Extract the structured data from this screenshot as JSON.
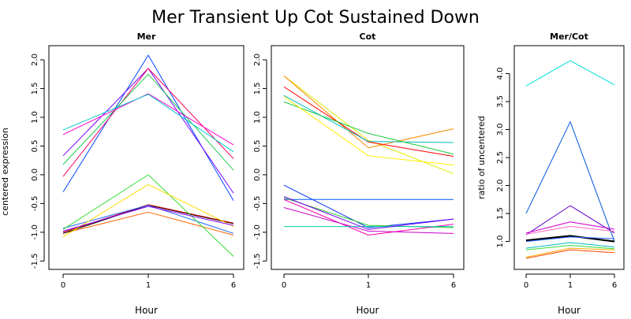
{
  "figure": {
    "title": "Mer Transient Up Cot Sustained Down",
    "y_axis_label": "centered expression"
  },
  "chart_data": [
    {
      "type": "line",
      "title": "Mer",
      "xlabel": "Hour",
      "ylabel": "",
      "categories": [
        "0",
        "1",
        "6"
      ],
      "ylim": [
        -1.55,
        2.15
      ],
      "yticks": [
        -1.5,
        -1.0,
        -0.5,
        0.0,
        0.5,
        1.0,
        1.5,
        2.0
      ],
      "ytick_labels": [
        "-1.5",
        "-1.0",
        "-0.5",
        "0.0",
        "0.5",
        "1.0",
        "1.5",
        "2.0"
      ],
      "grid": false,
      "series": [
        {
          "color": "#0044ff",
          "values": [
            -0.3,
            2.08,
            -0.45
          ]
        },
        {
          "color": "#7a00ff",
          "values": [
            0.33,
            1.85,
            -0.32
          ]
        },
        {
          "color": "#ff0066",
          "values": [
            -0.03,
            1.85,
            0.28
          ]
        },
        {
          "color": "#22cc55",
          "values": [
            0.18,
            1.75,
            0.08
          ]
        },
        {
          "color": "#ff00cc",
          "values": [
            0.7,
            1.41,
            0.52
          ]
        },
        {
          "color": "#00cccc",
          "values": [
            0.78,
            1.4,
            0.4
          ]
        },
        {
          "color": "#ff6600",
          "values": [
            -1.02,
            -0.65,
            -1.05
          ]
        },
        {
          "color": "#000000",
          "values": [
            -1.02,
            -0.53,
            -0.85
          ]
        },
        {
          "color": "#cc0000",
          "values": [
            -1.0,
            -0.52,
            -0.84
          ]
        },
        {
          "color": "#2266ff",
          "values": [
            -0.93,
            -0.53,
            -1.02
          ]
        },
        {
          "color": "#33dd33",
          "values": [
            -0.95,
            0.0,
            -1.42
          ]
        },
        {
          "color": "#ffdd00",
          "values": [
            -1.08,
            -0.17,
            -0.9
          ]
        },
        {
          "color": "#8800ff",
          "values": [
            -0.98,
            -0.55,
            -0.88
          ]
        }
      ]
    },
    {
      "type": "line",
      "title": "Cot",
      "xlabel": "Hour",
      "ylabel": "",
      "categories": [
        "0",
        "1",
        "6"
      ],
      "ylim": [
        -1.55,
        2.15
      ],
      "yticks": [
        -1.5,
        -1.0,
        -0.5,
        0.0,
        0.5,
        1.0,
        1.5,
        2.0
      ],
      "ytick_labels": [
        "-1.5",
        "-1.0",
        "-0.5",
        "0.0",
        "0.5",
        "1.0",
        "1.5",
        "2.0"
      ],
      "grid": false,
      "series": [
        {
          "color": "#ddee00",
          "values": [
            1.72,
            0.6,
            0.02
          ]
        },
        {
          "color": "#ff8800",
          "values": [
            1.72,
            0.47,
            0.8
          ]
        },
        {
          "color": "#ff0000",
          "values": [
            1.53,
            0.57,
            0.32
          ]
        },
        {
          "color": "#00bbbb",
          "values": [
            1.38,
            0.58,
            0.56
          ]
        },
        {
          "color": "#22cc44",
          "values": [
            1.27,
            0.72,
            0.36
          ]
        },
        {
          "color": "#ffee00",
          "values": [
            1.36,
            0.33,
            0.17
          ]
        },
        {
          "color": "#0033ff",
          "values": [
            -0.18,
            -0.92,
            -0.77
          ]
        },
        {
          "color": "#0055ff",
          "values": [
            -0.43,
            -0.43,
            -0.43
          ]
        },
        {
          "color": "#33cc33",
          "values": [
            -0.4,
            -0.88,
            -0.92
          ]
        },
        {
          "color": "#ff00aa",
          "values": [
            -0.43,
            -1.05,
            -0.86
          ]
        },
        {
          "color": "#cc00cc",
          "values": [
            -0.57,
            -0.98,
            -1.02
          ]
        },
        {
          "color": "#00ccaa",
          "values": [
            -0.9,
            -0.9,
            -0.9
          ]
        },
        {
          "color": "#7700ff",
          "values": [
            -0.38,
            -0.95,
            -0.77
          ]
        }
      ]
    },
    {
      "type": "line",
      "title": "Mer/Cot",
      "xlabel": "Hour",
      "ylabel": "ratio of uncentered",
      "categories": [
        "0",
        "1",
        "6"
      ],
      "ylim": [
        0.6,
        4.4
      ],
      "yticks": [
        1.0,
        1.5,
        2.0,
        2.5,
        3.0,
        3.5,
        4.0
      ],
      "ytick_labels": [
        "1.0",
        "1.5",
        "2.0",
        "2.5",
        "3.0",
        "3.5",
        "4.0"
      ],
      "grid": false,
      "series": [
        {
          "color": "#00dddd",
          "values": [
            3.78,
            4.23,
            3.8
          ]
        },
        {
          "color": "#0055dd",
          "values": [
            1.5,
            3.14,
            1.0
          ]
        },
        {
          "color": "#6600cc",
          "values": [
            1.12,
            1.64,
            1.15
          ]
        },
        {
          "color": "#cc00cc",
          "values": [
            1.15,
            1.35,
            1.22
          ]
        },
        {
          "color": "#ff66cc",
          "values": [
            1.13,
            1.27,
            1.18
          ]
        },
        {
          "color": "#000000",
          "values": [
            1.02,
            1.1,
            1.0
          ],
          "width": 2.2
        },
        {
          "color": "#2266ff",
          "values": [
            1.0,
            1.08,
            1.05
          ]
        },
        {
          "color": "#00bbbb",
          "values": [
            0.88,
            0.98,
            0.9
          ]
        },
        {
          "color": "#33dd33",
          "values": [
            0.85,
            0.93,
            0.87
          ]
        },
        {
          "color": "#ffaa00",
          "values": [
            0.72,
            0.88,
            0.85
          ]
        },
        {
          "color": "#ff4400",
          "values": [
            0.7,
            0.85,
            0.8
          ]
        }
      ]
    }
  ]
}
